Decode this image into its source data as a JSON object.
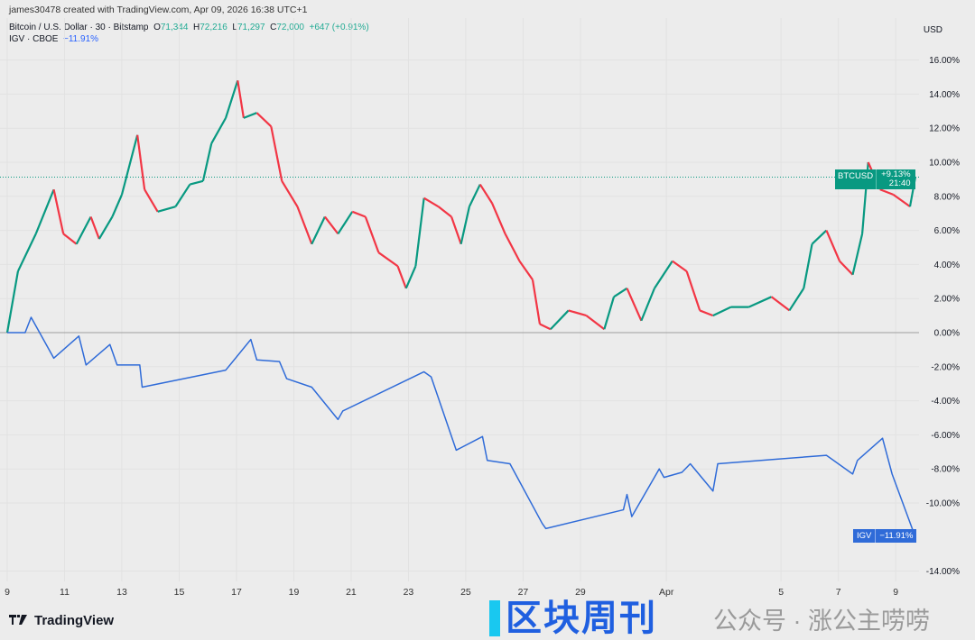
{
  "header": {
    "credit": "james30478 created with TradingView.com, Apr 09, 2026 16:38 UTC+1"
  },
  "legend": {
    "btc": {
      "name": "Bitcoin / U.S. Dollar · 30 · Bitstamp",
      "o_label": "O",
      "o": "71,344",
      "h_label": "H",
      "h": "72,216",
      "l_label": "L",
      "l": "71,297",
      "c_label": "C",
      "c": "72,000",
      "change": "+647 (+0.91%)"
    },
    "igv": {
      "name": "IGV · CBOE",
      "change": "−11.91%"
    }
  },
  "axis": {
    "currency": "USD"
  },
  "tags": {
    "btc": {
      "symbol": "BTCUSD",
      "value": "+9.13%",
      "countdown": "21:40"
    },
    "igv": {
      "symbol": "IGV",
      "value": "−11.91%"
    }
  },
  "branding": {
    "logo": "TradingView"
  },
  "watermark": {
    "title": "区块周刊",
    "subtitle": "公众号 · 涨公主唠唠"
  },
  "colors": {
    "up": "#089981",
    "down": "#f23645",
    "igv": "#2f6bd8",
    "background": "#ececec"
  },
  "chart_data": {
    "type": "line",
    "y_unit": "%",
    "ylim": [
      -15,
      17
    ],
    "y_ticks": [
      16,
      14,
      12,
      10,
      8,
      6,
      4,
      2,
      0,
      -2,
      -4,
      -6,
      -8,
      -10,
      -14
    ],
    "y_tick_labels": [
      "16.00%",
      "14.00%",
      "12.00%",
      "10.00%",
      "8.00%",
      "6.00%",
      "4.00%",
      "2.00%",
      "0.00%",
      "-2.00%",
      "-4.00%",
      "-6.00%",
      "-8.00%",
      "-10.00%",
      "-14.00%"
    ],
    "x_ticks": [
      "2026-03-09",
      "2026-03-11",
      "2026-03-13",
      "2026-03-15",
      "2026-03-17",
      "2026-03-19",
      "2026-03-21",
      "2026-03-23",
      "2026-03-25",
      "2026-03-27",
      "2026-03-29",
      "2026-04-01",
      "2026-04-05",
      "2026-04-07",
      "2026-04-09"
    ],
    "x_tick_labels": [
      "9",
      "11",
      "13",
      "15",
      "17",
      "19",
      "21",
      "23",
      "25",
      "27",
      "29",
      "Apr",
      "5",
      "7",
      "9"
    ],
    "grid": true,
    "series": [
      {
        "name": "BTCUSD",
        "style": "candles",
        "points": [
          [
            "2026-03-09 00:00",
            0.0
          ],
          [
            "2026-03-09 09:00",
            3.6
          ],
          [
            "2026-03-10 00:00",
            5.8
          ],
          [
            "2026-03-10 15:00",
            8.4
          ],
          [
            "2026-03-10 23:00",
            5.8
          ],
          [
            "2026-03-11 10:00",
            5.2
          ],
          [
            "2026-03-11 22:00",
            6.8
          ],
          [
            "2026-03-12 05:00",
            5.5
          ],
          [
            "2026-03-12 16:00",
            6.8
          ],
          [
            "2026-03-13 00:00",
            8.1
          ],
          [
            "2026-03-13 13:00",
            11.6
          ],
          [
            "2026-03-13 19:00",
            8.4
          ],
          [
            "2026-03-14 06:00",
            7.1
          ],
          [
            "2026-03-14 21:00",
            7.4
          ],
          [
            "2026-03-15 09:00",
            8.7
          ],
          [
            "2026-03-15 20:00",
            8.9
          ],
          [
            "2026-03-16 03:00",
            11.1
          ],
          [
            "2026-03-16 15:00",
            12.6
          ],
          [
            "2026-03-17 01:00",
            14.8
          ],
          [
            "2026-03-17 06:00",
            12.6
          ],
          [
            "2026-03-17 17:00",
            12.9
          ],
          [
            "2026-03-18 05:00",
            12.1
          ],
          [
            "2026-03-18 14:00",
            8.9
          ],
          [
            "2026-03-19 03:00",
            7.4
          ],
          [
            "2026-03-19 15:00",
            5.2
          ],
          [
            "2026-03-20 02:00",
            6.8
          ],
          [
            "2026-03-20 13:00",
            5.8
          ],
          [
            "2026-03-21 01:00",
            7.1
          ],
          [
            "2026-03-21 12:00",
            6.8
          ],
          [
            "2026-03-21 23:00",
            4.7
          ],
          [
            "2026-03-22 15:00",
            3.9
          ],
          [
            "2026-03-22 22:00",
            2.6
          ],
          [
            "2026-03-23 06:00",
            3.9
          ],
          [
            "2026-03-23 13:00",
            7.9
          ],
          [
            "2026-03-24 01:00",
            7.4
          ],
          [
            "2026-03-24 12:00",
            6.8
          ],
          [
            "2026-03-24 20:00",
            5.2
          ],
          [
            "2026-03-25 03:00",
            7.4
          ],
          [
            "2026-03-25 12:00",
            8.7
          ],
          [
            "2026-03-25 22:00",
            7.6
          ],
          [
            "2026-03-26 09:00",
            5.8
          ],
          [
            "2026-03-26 21:00",
            4.2
          ],
          [
            "2026-03-27 08:00",
            3.1
          ],
          [
            "2026-03-27 14:00",
            0.5
          ],
          [
            "2026-03-27 23:00",
            0.2
          ],
          [
            "2026-03-28 14:00",
            1.3
          ],
          [
            "2026-03-29 05:00",
            1.0
          ],
          [
            "2026-03-29 20:00",
            0.2
          ],
          [
            "2026-03-30 04:00",
            2.1
          ],
          [
            "2026-03-30 15:00",
            2.6
          ],
          [
            "2026-03-31 03:00",
            0.7
          ],
          [
            "2026-03-31 14:00",
            2.6
          ],
          [
            "2026-04-01 05:00",
            4.2
          ],
          [
            "2026-04-01 17:00",
            3.6
          ],
          [
            "2026-04-02 04:00",
            1.3
          ],
          [
            "2026-04-02 15:00",
            1.0
          ],
          [
            "2026-04-03 06:00",
            1.5
          ],
          [
            "2026-04-03 21:00",
            1.5
          ],
          [
            "2026-04-04 16:00",
            2.1
          ],
          [
            "2026-04-05 07:00",
            1.3
          ],
          [
            "2026-04-05 19:00",
            2.6
          ],
          [
            "2026-04-06 02:00",
            5.2
          ],
          [
            "2026-04-06 14:00",
            6.0
          ],
          [
            "2026-04-07 01:00",
            4.2
          ],
          [
            "2026-04-07 12:00",
            3.4
          ],
          [
            "2026-04-07 20:00",
            5.8
          ],
          [
            "2026-04-08 01:00",
            10.0
          ],
          [
            "2026-04-08 11:00",
            8.4
          ],
          [
            "2026-04-08 22:00",
            8.1
          ],
          [
            "2026-04-09 12:00",
            7.4
          ],
          [
            "2026-04-09 16:30",
            9.13
          ]
        ]
      },
      {
        "name": "IGV",
        "style": "line",
        "points": [
          [
            "2026-03-09 00:00",
            0
          ],
          [
            "2026-03-09 15:00",
            0
          ],
          [
            "2026-03-09 20:00",
            0.9
          ],
          [
            "2026-03-10 15:00",
            -1.5
          ],
          [
            "2026-03-11 12:00",
            -0.2
          ],
          [
            "2026-03-11 18:00",
            -1.9
          ],
          [
            "2026-03-12 14:00",
            -0.7
          ],
          [
            "2026-03-12 20:00",
            -1.9
          ],
          [
            "2026-03-13 15:00",
            -1.9
          ],
          [
            "2026-03-13 17:00",
            -3.2
          ],
          [
            "2026-03-16 15:00",
            -2.2
          ],
          [
            "2026-03-17 12:00",
            -0.4
          ],
          [
            "2026-03-17 17:00",
            -1.6
          ],
          [
            "2026-03-18 12:00",
            -1.7
          ],
          [
            "2026-03-18 18:00",
            -2.7
          ],
          [
            "2026-03-19 15:00",
            -3.2
          ],
          [
            "2026-03-20 13:00",
            -5.1
          ],
          [
            "2026-03-20 17:00",
            -4.6
          ],
          [
            "2026-03-23 13:00",
            -2.3
          ],
          [
            "2026-03-23 19:00",
            -2.6
          ],
          [
            "2026-03-24 16:00",
            -6.9
          ],
          [
            "2026-03-25 14:00",
            -6.1
          ],
          [
            "2026-03-25 18:00",
            -7.5
          ],
          [
            "2026-03-26 13:00",
            -7.7
          ],
          [
            "2026-03-27 16:00",
            -11.2
          ],
          [
            "2026-03-27 19:00",
            -11.5
          ],
          [
            "2026-03-30 12:00",
            -10.4
          ],
          [
            "2026-03-30 15:00",
            -9.5
          ],
          [
            "2026-03-30 19:00",
            -10.8
          ],
          [
            "2026-03-31 18:00",
            -8.0
          ],
          [
            "2026-03-31 22:00",
            -8.5
          ],
          [
            "2026-04-01 13:00",
            -8.2
          ],
          [
            "2026-04-01 20:00",
            -7.7
          ],
          [
            "2026-04-02 15:00",
            -9.3
          ],
          [
            "2026-04-02 19:00",
            -7.7
          ],
          [
            "2026-04-06 14:00",
            -7.2
          ],
          [
            "2026-04-07 12:00",
            -8.3
          ],
          [
            "2026-04-07 16:00",
            -7.5
          ],
          [
            "2026-04-08 13:00",
            -6.2
          ],
          [
            "2026-04-08 21:00",
            -8.3
          ],
          [
            "2026-04-09 16:00",
            -11.91
          ]
        ]
      }
    ]
  }
}
